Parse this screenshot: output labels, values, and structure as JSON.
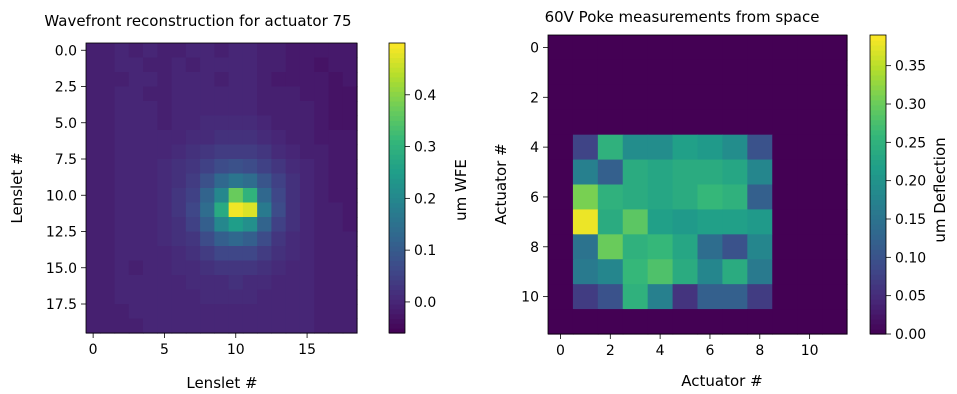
{
  "chart_data": [
    {
      "type": "heatmap",
      "title": "Wavefront  reconstruction for actuator 75",
      "xlabel": "Lenslet #",
      "ylabel": "Lenslet #",
      "colorbar_label": "um WFE",
      "colormap": "viridis",
      "grid": false,
      "rows": 20,
      "cols": 19,
      "x_ticks": [
        "0",
        "5",
        "10",
        "15"
      ],
      "y_ticks": [
        "0.0",
        "2.5",
        "5.0",
        "7.5",
        "10.0",
        "12.5",
        "15.0",
        "17.5"
      ],
      "colorbar_ticks": [
        "0.0",
        "0.1",
        "0.2",
        "0.3",
        "0.4"
      ],
      "vmin": -0.06,
      "vmax": 0.5,
      "values": [
        [
          -0.01,
          -0.01,
          0.0,
          -0.01,
          0.0,
          -0.01,
          -0.01,
          0.0,
          0.0,
          -0.01,
          0.0,
          0.0,
          -0.01,
          -0.01,
          -0.02,
          -0.02,
          -0.02,
          -0.02,
          -0.02
        ],
        [
          -0.01,
          -0.01,
          0.0,
          0.0,
          -0.01,
          -0.01,
          0.0,
          -0.01,
          0.0,
          0.0,
          0.0,
          0.0,
          -0.01,
          -0.01,
          -0.02,
          -0.02,
          -0.03,
          -0.02,
          -0.02
        ],
        [
          -0.01,
          -0.01,
          -0.01,
          0.0,
          0.0,
          -0.01,
          0.0,
          0.0,
          0.0,
          -0.01,
          0.0,
          0.0,
          -0.01,
          -0.02,
          -0.02,
          -0.02,
          -0.02,
          -0.03,
          -0.02
        ],
        [
          -0.01,
          -0.01,
          0.0,
          0.0,
          -0.01,
          -0.01,
          0.0,
          0.0,
          0.0,
          0.0,
          0.0,
          0.0,
          -0.01,
          -0.01,
          -0.01,
          -0.02,
          -0.02,
          -0.03,
          -0.03
        ],
        [
          -0.01,
          -0.01,
          0.0,
          0.0,
          0.0,
          -0.01,
          0.0,
          0.0,
          0.0,
          0.0,
          0.0,
          0.0,
          -0.01,
          -0.01,
          -0.01,
          -0.01,
          -0.02,
          -0.03,
          -0.03
        ],
        [
          -0.01,
          -0.01,
          0.0,
          0.0,
          0.0,
          -0.01,
          0.0,
          0.0,
          0.01,
          0.01,
          0.01,
          0.01,
          0.0,
          -0.01,
          -0.01,
          -0.01,
          -0.02,
          -0.03,
          -0.03
        ],
        [
          -0.01,
          -0.01,
          0.0,
          0.0,
          0.0,
          0.0,
          0.0,
          0.01,
          0.01,
          0.02,
          0.02,
          0.02,
          0.01,
          0.0,
          -0.01,
          -0.01,
          -0.02,
          -0.02,
          -0.02
        ],
        [
          -0.01,
          -0.01,
          0.0,
          0.0,
          0.0,
          0.0,
          0.01,
          0.02,
          0.03,
          0.04,
          0.04,
          0.04,
          0.03,
          0.01,
          0.0,
          -0.01,
          -0.01,
          -0.02,
          -0.02
        ],
        [
          -0.01,
          -0.01,
          0.0,
          0.0,
          0.0,
          0.01,
          0.02,
          0.03,
          0.05,
          0.07,
          0.08,
          0.07,
          0.05,
          0.03,
          0.01,
          0.0,
          -0.01,
          -0.02,
          -0.02
        ],
        [
          -0.01,
          -0.01,
          0.0,
          0.0,
          0.0,
          0.01,
          0.02,
          0.04,
          0.08,
          0.13,
          0.16,
          0.14,
          0.09,
          0.05,
          0.02,
          0.0,
          -0.01,
          -0.02,
          -0.02
        ],
        [
          -0.01,
          -0.01,
          0.0,
          0.0,
          0.0,
          0.01,
          0.03,
          0.05,
          0.12,
          0.2,
          0.37,
          0.3,
          0.13,
          0.06,
          0.02,
          0.0,
          -0.01,
          -0.02,
          -0.02
        ],
        [
          -0.01,
          -0.01,
          0.0,
          0.0,
          0.0,
          0.01,
          0.03,
          0.06,
          0.14,
          0.28,
          0.49,
          0.47,
          0.17,
          0.07,
          0.02,
          0.0,
          -0.01,
          -0.01,
          -0.02
        ],
        [
          -0.01,
          -0.01,
          0.0,
          0.0,
          0.0,
          0.01,
          0.02,
          0.05,
          0.11,
          0.2,
          0.25,
          0.22,
          0.12,
          0.05,
          0.02,
          0.0,
          -0.01,
          -0.01,
          -0.02
        ],
        [
          -0.01,
          -0.01,
          0.0,
          0.0,
          0.0,
          0.01,
          0.02,
          0.03,
          0.07,
          0.11,
          0.13,
          0.11,
          0.07,
          0.03,
          0.01,
          0.0,
          -0.01,
          -0.01,
          -0.01
        ],
        [
          -0.01,
          -0.01,
          0.0,
          0.0,
          0.0,
          0.0,
          0.01,
          0.02,
          0.04,
          0.06,
          0.06,
          0.06,
          0.04,
          0.02,
          0.01,
          0.0,
          -0.01,
          -0.01,
          -0.01
        ],
        [
          -0.01,
          -0.01,
          0.0,
          -0.01,
          0.0,
          0.0,
          0.01,
          0.01,
          0.02,
          0.03,
          0.03,
          0.03,
          0.02,
          0.01,
          0.0,
          0.0,
          -0.01,
          -0.01,
          -0.01
        ],
        [
          -0.01,
          -0.01,
          0.0,
          0.0,
          0.0,
          0.0,
          0.0,
          0.01,
          0.01,
          0.01,
          0.02,
          0.01,
          0.01,
          0.0,
          0.0,
          0.0,
          -0.01,
          -0.01,
          -0.01
        ],
        [
          -0.01,
          -0.01,
          0.0,
          0.0,
          0.0,
          0.0,
          0.0,
          0.0,
          0.01,
          0.01,
          0.01,
          0.01,
          0.0,
          0.0,
          0.0,
          0.0,
          -0.01,
          -0.01,
          -0.01
        ],
        [
          -0.01,
          -0.01,
          -0.01,
          0.0,
          0.0,
          0.0,
          0.0,
          0.0,
          0.0,
          0.0,
          0.0,
          0.0,
          0.0,
          0.0,
          0.0,
          0.0,
          -0.01,
          -0.01,
          -0.01
        ],
        [
          -0.01,
          -0.01,
          -0.01,
          -0.01,
          0.0,
          0.0,
          0.0,
          0.0,
          0.0,
          0.0,
          0.0,
          0.0,
          0.0,
          0.0,
          0.0,
          0.0,
          -0.01,
          -0.01,
          -0.01
        ]
      ]
    },
    {
      "type": "heatmap",
      "title": "60V Poke measurements from space",
      "xlabel": "Actuator #",
      "ylabel": "Actuator #",
      "colorbar_label": "um Deflection",
      "colormap": "viridis",
      "grid": false,
      "rows": 12,
      "cols": 12,
      "x_ticks": [
        "0",
        "2",
        "4",
        "6",
        "8",
        "10"
      ],
      "y_ticks": [
        "0",
        "2",
        "4",
        "6",
        "8",
        "10"
      ],
      "colorbar_ticks": [
        "0.00",
        "0.05",
        "0.10",
        "0.15",
        "0.20",
        "0.25",
        "0.30",
        "0.35"
      ],
      "vmin": 0,
      "vmax": 0.39,
      "values": [
        [
          0,
          0,
          0,
          0,
          0,
          0,
          0,
          0,
          0,
          0,
          0,
          0
        ],
        [
          0,
          0,
          0,
          0,
          0,
          0,
          0,
          0,
          0,
          0,
          0,
          0
        ],
        [
          0,
          0,
          0,
          0,
          0,
          0,
          0,
          0,
          0,
          0,
          0,
          0
        ],
        [
          0,
          0,
          0,
          0,
          0,
          0,
          0,
          0,
          0,
          0,
          0,
          0
        ],
        [
          0,
          0.08,
          0.25,
          0.19,
          0.19,
          0.22,
          0.21,
          0.19,
          0.1,
          0,
          0,
          0
        ],
        [
          0,
          0.17,
          0.12,
          0.24,
          0.23,
          0.24,
          0.24,
          0.23,
          0.18,
          0,
          0,
          0
        ],
        [
          0,
          0.31,
          0.25,
          0.24,
          0.23,
          0.24,
          0.26,
          0.25,
          0.12,
          0,
          0,
          0
        ],
        [
          0,
          0.38,
          0.24,
          0.29,
          0.22,
          0.21,
          0.22,
          0.22,
          0.21,
          0,
          0,
          0
        ],
        [
          0,
          0.15,
          0.3,
          0.25,
          0.26,
          0.23,
          0.14,
          0.1,
          0.18,
          0,
          0,
          0
        ],
        [
          0,
          0.16,
          0.18,
          0.26,
          0.28,
          0.24,
          0.18,
          0.24,
          0.16,
          0,
          0,
          0
        ],
        [
          0,
          0.07,
          0.1,
          0.25,
          0.17,
          0.06,
          0.12,
          0.12,
          0.07,
          0,
          0,
          0
        ],
        [
          0,
          0,
          0,
          0,
          0,
          0,
          0,
          0,
          0,
          0,
          0,
          0
        ]
      ]
    }
  ]
}
